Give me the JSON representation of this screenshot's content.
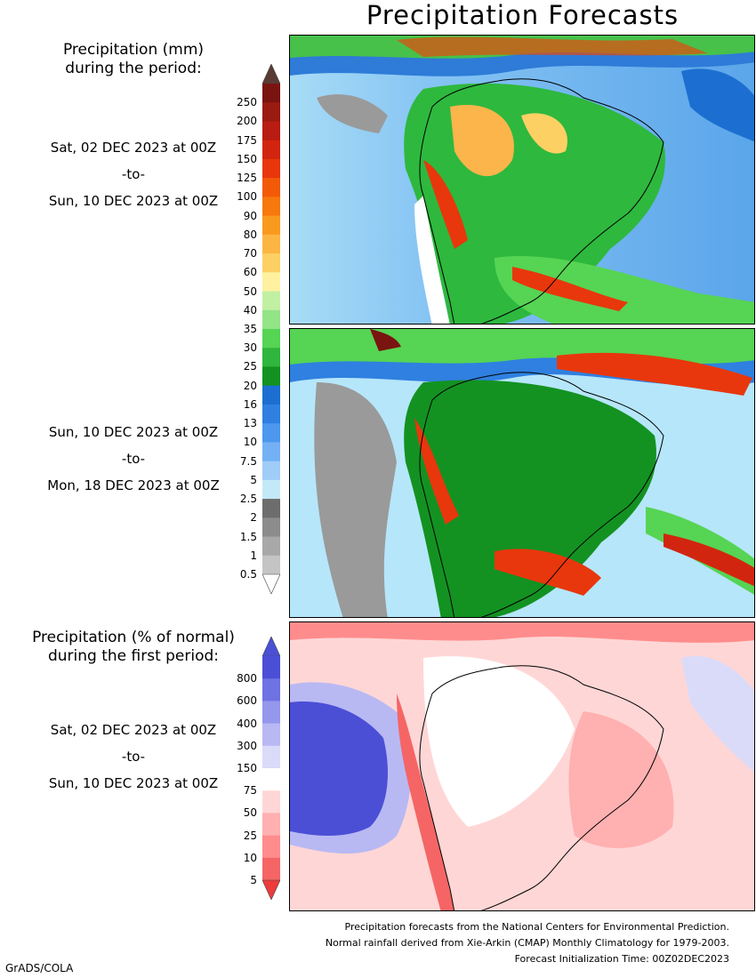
{
  "title": "Precipitation Forecasts",
  "mm_legend": {
    "heading_line1": "Precipitation (mm)",
    "heading_line2": "during the period:",
    "levels": [
      "250",
      "200",
      "175",
      "150",
      "125",
      "100",
      "90",
      "80",
      "70",
      "60",
      "50",
      "40",
      "35",
      "30",
      "25",
      "20",
      "16",
      "13",
      "10",
      "7.5",
      "5",
      "2.5",
      "2",
      "1.5",
      "1",
      "0.5"
    ],
    "colors": [
      "#7a1410",
      "#9b1a12",
      "#b81c12",
      "#d2250f",
      "#e8370c",
      "#f25a08",
      "#f7780d",
      "#f99a1f",
      "#fcb542",
      "#fdd063",
      "#fff1a0",
      "#c2f0a2",
      "#93e487",
      "#56d453",
      "#2fb63c",
      "#139222",
      "#1c6fd1",
      "#2f80e0",
      "#4c98ee",
      "#74b1f4",
      "#a0ccf8",
      "#c3e9f9",
      "#6d6d6d",
      "#8c8c8c",
      "#a8a8a8",
      "#c4c4c4"
    ],
    "top_color": "#5a3b33",
    "bottom_color": "#ffffff"
  },
  "pct_legend": {
    "heading_line1": "Precipitation (% of normal)",
    "heading_line2": "during the first period:",
    "levels": [
      "800",
      "600",
      "400",
      "300",
      "150",
      "75",
      "50",
      "25",
      "10",
      "5"
    ],
    "colors": [
      "#4b4fd6",
      "#6e72e3",
      "#9497ec",
      "#b8b9f3",
      "#dadbf9",
      "#ffffff",
      "#ffd6d6",
      "#ffb0b0",
      "#ff8c8c",
      "#f56565"
    ],
    "top_color": "#4a4fd6",
    "bottom_color": "#ee3b3b"
  },
  "periods": [
    {
      "from": "Sat, 02 DEC 2023 at 00Z",
      "sep": "-to-",
      "to": "Sun, 10 DEC 2023 at 00Z"
    },
    {
      "from": "Sun, 10 DEC 2023 at 00Z",
      "sep": "-to-",
      "to": "Mon, 18 DEC 2023 at 00Z"
    },
    {
      "from": "Sat, 02 DEC 2023 at 00Z",
      "sep": "-to-",
      "to": "Sun, 10 DEC 2023 at 00Z"
    }
  ],
  "footer": {
    "line1": "Precipitation forecasts from the National Centers for Environmental Prediction.",
    "line2": "Normal rainfall derived from Xie-Arkin (CMAP) Monthly Climatology for 1979-2003.",
    "line3": "Forecast Initialization Time: 00Z02DEC2023"
  },
  "credit": "GrADS/COLA"
}
